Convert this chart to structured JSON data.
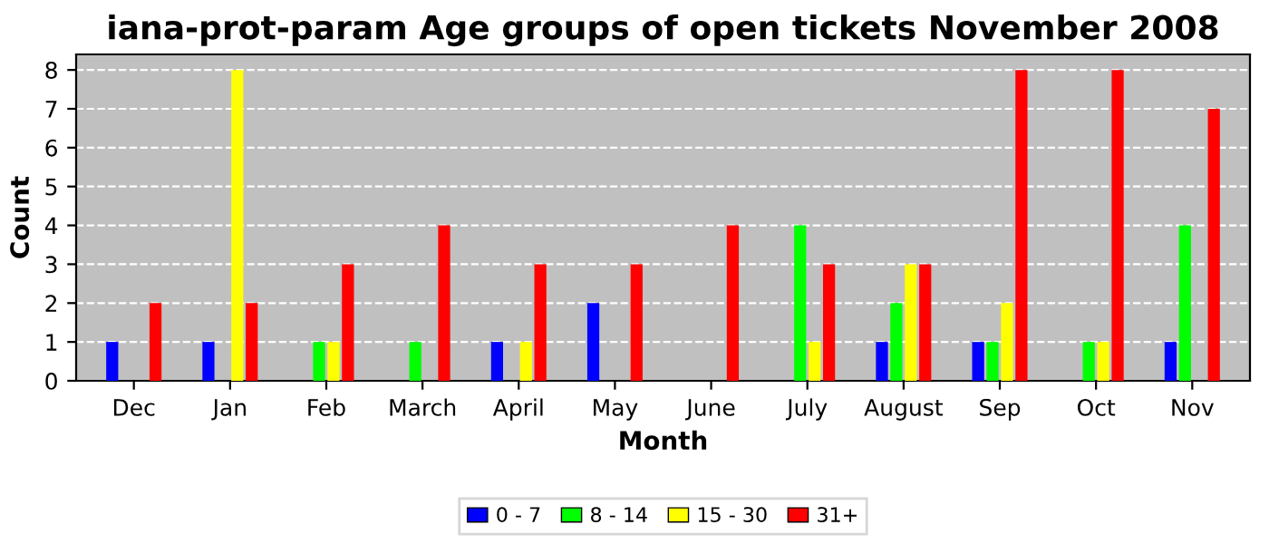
{
  "chart_data": {
    "type": "bar",
    "title": "iana-prot-param Age groups of open tickets November 2008",
    "xlabel": "Month",
    "ylabel": "Count",
    "categories": [
      "Dec",
      "Jan",
      "Feb",
      "March",
      "April",
      "May",
      "June",
      "July",
      "August",
      "Sep",
      "Oct",
      "Nov"
    ],
    "series": [
      {
        "name": "0 - 7",
        "color": "#0000ff",
        "values": [
          1,
          1,
          0,
          0,
          1,
          2,
          0,
          0,
          1,
          1,
          0,
          1
        ]
      },
      {
        "name": "8 - 14",
        "color": "#00ff00",
        "values": [
          0,
          0,
          1,
          1,
          0,
          0,
          0,
          4,
          2,
          1,
          1,
          4
        ]
      },
      {
        "name": "15 - 30",
        "color": "#ffff00",
        "values": [
          0,
          8,
          1,
          0,
          1,
          0,
          0,
          1,
          3,
          2,
          1,
          0
        ]
      },
      {
        "name": "31+",
        "color": "#ff0000",
        "values": [
          2,
          2,
          3,
          4,
          3,
          3,
          4,
          3,
          3,
          8,
          8,
          7
        ]
      }
    ],
    "ylim": [
      0,
      8.4
    ],
    "yticks": [
      0,
      1,
      2,
      3,
      4,
      5,
      6,
      7,
      8
    ],
    "grid": "y",
    "legend": "bottom"
  }
}
